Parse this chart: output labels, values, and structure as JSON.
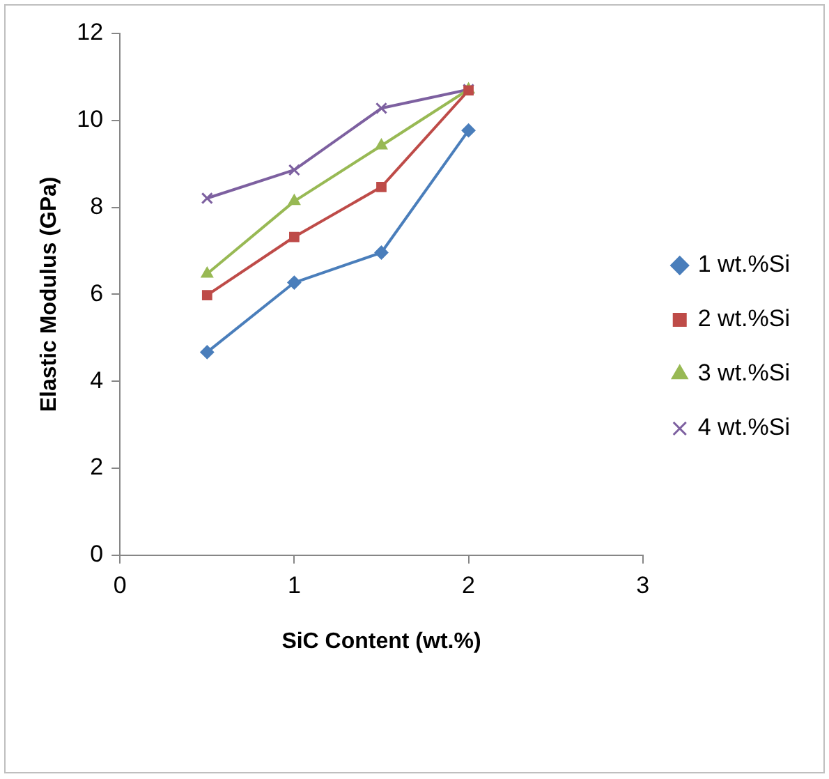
{
  "chart_data": {
    "type": "line",
    "xlabel": "SiC Content (wt.%)",
    "ylabel": "Elastic Modulus (GPa)",
    "x": [
      0.5,
      1,
      1.5,
      2
    ],
    "series": [
      {
        "name": "1 wt.%Si",
        "color": "#4a7ebb",
        "marker": "diamond",
        "values": [
          4.67,
          6.27,
          6.96,
          9.77
        ]
      },
      {
        "name": "2 wt.%Si",
        "color": "#be4b48",
        "marker": "square",
        "values": [
          5.98,
          7.32,
          8.47,
          10.69
        ]
      },
      {
        "name": "3 wt.%Si",
        "color": "#98b954",
        "marker": "triangle",
        "values": [
          6.47,
          8.14,
          9.42,
          10.71
        ]
      },
      {
        "name": "4 wt.%Si",
        "color": "#7d60a0",
        "marker": "cross",
        "values": [
          8.21,
          8.86,
          10.28,
          10.71
        ]
      }
    ],
    "xlim": [
      0,
      3
    ],
    "xticks": [
      0,
      1,
      2,
      3
    ],
    "ylim": [
      0,
      12
    ],
    "yticks": [
      0,
      2,
      4,
      6,
      8,
      10,
      12
    ],
    "grid": false,
    "legend": "right",
    "line_style": "solid"
  }
}
